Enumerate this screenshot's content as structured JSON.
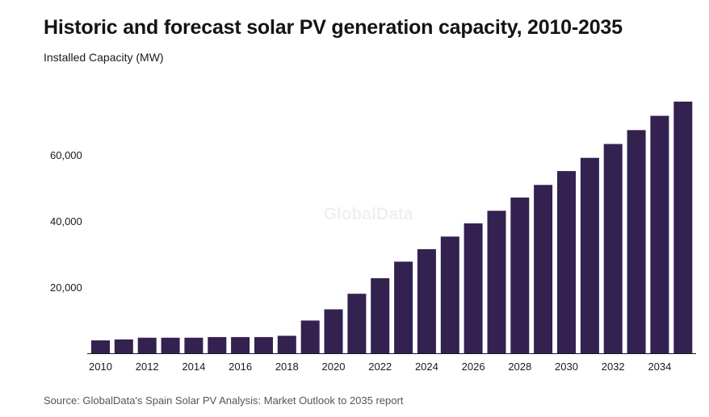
{
  "title": "Historic and forecast solar PV generation capacity, 2010-2035",
  "subtitle": "Installed Capacity (MW)",
  "source": "Source: GlobalData's Spain Solar PV Analysis: Market Outlook to 2035 report",
  "watermark": "GlobalData",
  "colors": {
    "bar": "#33214f",
    "axis": "#1a1a1a",
    "text": "#1a1a1a"
  },
  "chart_data": {
    "type": "bar",
    "title": "Historic and forecast solar PV generation capacity, 2010-2035",
    "ylabel": "Installed Capacity (MW)",
    "xlabel": "",
    "ylim": [
      0,
      76000
    ],
    "grid": false,
    "yticks": [
      "20,000",
      "40,000",
      "60,000"
    ],
    "ytick_values": [
      20000,
      40000,
      60000
    ],
    "xtick_labels": [
      "2010",
      "2012",
      "2014",
      "2016",
      "2018",
      "2020",
      "2022",
      "2024",
      "2026",
      "2028",
      "2030",
      "2032",
      "2034"
    ],
    "categories": [
      2010,
      2011,
      2012,
      2013,
      2014,
      2015,
      2016,
      2017,
      2018,
      2019,
      2020,
      2021,
      2022,
      2023,
      2024,
      2025,
      2026,
      2027,
      2028,
      2029,
      2030,
      2031,
      2032,
      2033,
      2034,
      2035
    ],
    "values": [
      3900,
      4200,
      4700,
      4700,
      4700,
      4900,
      4900,
      4900,
      5300,
      9900,
      13300,
      18000,
      22700,
      27700,
      31500,
      35300,
      39300,
      43100,
      47100,
      50900,
      55100,
      59100,
      63300,
      67500,
      71800,
      76100
    ]
  }
}
